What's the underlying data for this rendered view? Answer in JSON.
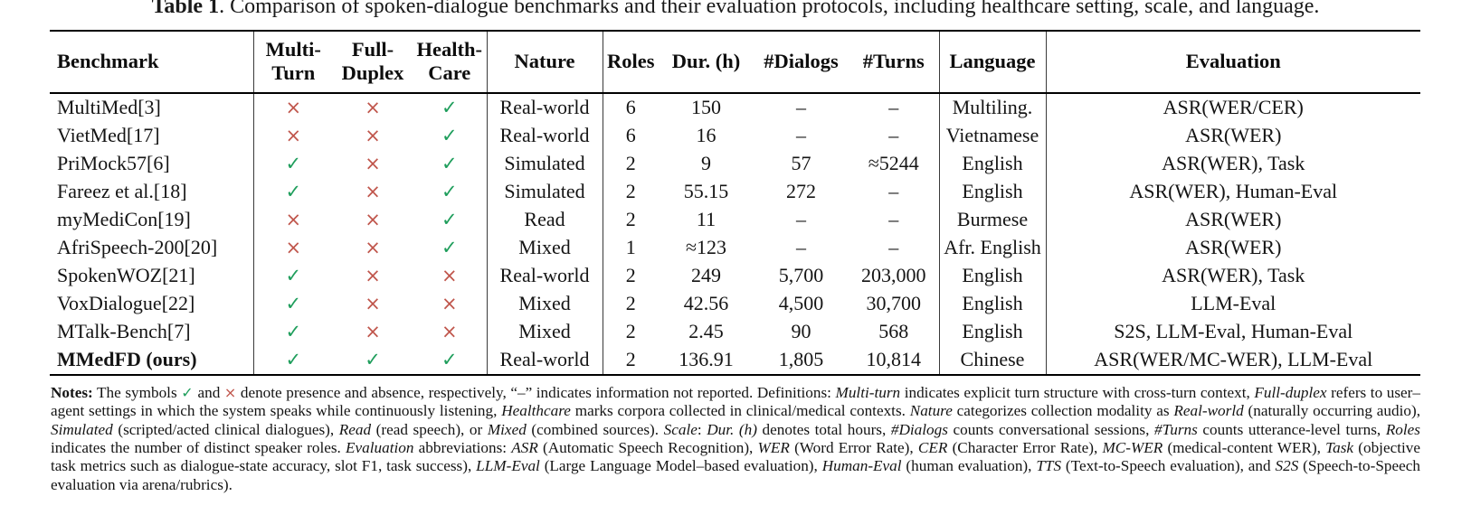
{
  "title": {
    "prefix": "Table 1",
    "rest": ". Comparison of spoken-dialogue benchmarks and their evaluation protocols, including healthcare setting, scale, and language."
  },
  "colors": {
    "check": "#1f9e5c",
    "cross": "#c0564c",
    "rule": "#000000"
  },
  "symbols": {
    "check": "✓",
    "cross": "×",
    "not_reported": "–"
  },
  "table": {
    "headers": [
      {
        "id": "benchmark",
        "lines": [
          "Benchmark"
        ],
        "align": "left"
      },
      {
        "id": "multi-turn",
        "lines": [
          "Multi-",
          "Turn"
        ]
      },
      {
        "id": "full-duplex",
        "lines": [
          "Full-",
          "Duplex"
        ]
      },
      {
        "id": "health-care",
        "lines": [
          "Health-",
          "Care"
        ]
      },
      {
        "id": "nature",
        "lines": [
          "Nature"
        ]
      },
      {
        "id": "roles",
        "lines": [
          "Roles"
        ]
      },
      {
        "id": "dur-h",
        "lines": [
          "Dur. (h)"
        ]
      },
      {
        "id": "dialogs",
        "lines": [
          "#Dialogs"
        ]
      },
      {
        "id": "turns",
        "lines": [
          "#Turns"
        ]
      },
      {
        "id": "language",
        "lines": [
          "Language"
        ]
      },
      {
        "id": "evaluation",
        "lines": [
          "Evaluation"
        ]
      }
    ],
    "rows": [
      {
        "benchmark": "MultiMed[3]",
        "bold": false,
        "multi_turn": false,
        "full_duplex": false,
        "healthcare": true,
        "nature": "Real-world",
        "roles": "6",
        "dur_h": "150",
        "dialogs": "–",
        "turns": "–",
        "language": "Multiling.",
        "evaluation": "ASR(WER/CER)"
      },
      {
        "benchmark": "VietMed[17]",
        "bold": false,
        "multi_turn": false,
        "full_duplex": false,
        "healthcare": true,
        "nature": "Real-world",
        "roles": "6",
        "dur_h": "16",
        "dialogs": "–",
        "turns": "–",
        "language": "Vietnamese",
        "evaluation": "ASR(WER)"
      },
      {
        "benchmark": "PriMock57[6]",
        "bold": false,
        "multi_turn": true,
        "full_duplex": false,
        "healthcare": true,
        "nature": "Simulated",
        "roles": "2",
        "dur_h": "9",
        "dialogs": "57",
        "turns": "≈5244",
        "language": "English",
        "evaluation": "ASR(WER), Task"
      },
      {
        "benchmark": "Fareez et al.[18]",
        "bold": false,
        "multi_turn": true,
        "full_duplex": false,
        "healthcare": true,
        "nature": "Simulated",
        "roles": "2",
        "dur_h": "55.15",
        "dialogs": "272",
        "turns": "–",
        "language": "English",
        "evaluation": "ASR(WER), Human-Eval"
      },
      {
        "benchmark": "myMediCon[19]",
        "bold": false,
        "multi_turn": false,
        "full_duplex": false,
        "healthcare": true,
        "nature": "Read",
        "roles": "2",
        "dur_h": "11",
        "dialogs": "–",
        "turns": "–",
        "language": "Burmese",
        "evaluation": "ASR(WER)"
      },
      {
        "benchmark": "AfriSpeech-200[20]",
        "bold": false,
        "multi_turn": false,
        "full_duplex": false,
        "healthcare": true,
        "nature": "Mixed",
        "roles": "1",
        "dur_h": "≈123",
        "dialogs": "–",
        "turns": "–",
        "language": "Afr. English",
        "evaluation": "ASR(WER)"
      },
      {
        "benchmark": "SpokenWOZ[21]",
        "bold": false,
        "multi_turn": true,
        "full_duplex": false,
        "healthcare": false,
        "nature": "Real-world",
        "roles": "2",
        "dur_h": "249",
        "dialogs": "5,700",
        "turns": "203,000",
        "language": "English",
        "evaluation": "ASR(WER), Task"
      },
      {
        "benchmark": "VoxDialogue[22]",
        "bold": false,
        "multi_turn": true,
        "full_duplex": false,
        "healthcare": false,
        "nature": "Mixed",
        "roles": "2",
        "dur_h": "42.56",
        "dialogs": "4,500",
        "turns": "30,700",
        "language": "English",
        "evaluation": "LLM-Eval"
      },
      {
        "benchmark": "MTalk-Bench[7]",
        "bold": false,
        "multi_turn": true,
        "full_duplex": false,
        "healthcare": false,
        "nature": "Mixed",
        "roles": "2",
        "dur_h": "2.45",
        "dialogs": "90",
        "turns": "568",
        "language": "English",
        "evaluation": "S2S, LLM-Eval, Human-Eval"
      },
      {
        "benchmark": "MMedFD (ours)",
        "bold": true,
        "multi_turn": true,
        "full_duplex": true,
        "healthcare": true,
        "nature": "Real-world",
        "roles": "2",
        "dur_h": "136.91",
        "dialogs": "1,805",
        "turns": "10,814",
        "language": "Chinese",
        "evaluation": "ASR(WER/MC-WER), LLM-Eval"
      }
    ]
  },
  "notes": {
    "segments": [
      {
        "t": "Notes:",
        "s": "b"
      },
      {
        "t": " The symbols ",
        "s": "n"
      },
      {
        "t": "✓",
        "s": "check"
      },
      {
        "t": " and ",
        "s": "n"
      },
      {
        "t": "×",
        "s": "cross"
      },
      {
        "t": " denote presence and absence, respectively, “–” indicates information not reported. Definitions: ",
        "s": "n"
      },
      {
        "t": "Multi-turn",
        "s": "i"
      },
      {
        "t": " indicates explicit turn structure with cross-turn context, ",
        "s": "n"
      },
      {
        "t": "Full-duplex",
        "s": "i"
      },
      {
        "t": " refers to user–agent settings in which the system speaks while continuously listening, ",
        "s": "n"
      },
      {
        "t": "Healthcare",
        "s": "i"
      },
      {
        "t": " marks corpora collected in clinical/medical contexts. ",
        "s": "n"
      },
      {
        "t": "Nature",
        "s": "i"
      },
      {
        "t": " categorizes collection modality as ",
        "s": "n"
      },
      {
        "t": "Real-world",
        "s": "i"
      },
      {
        "t": " (naturally occurring audio), ",
        "s": "n"
      },
      {
        "t": "Simulated",
        "s": "i"
      },
      {
        "t": " (scripted/acted clinical dialogues), ",
        "s": "n"
      },
      {
        "t": "Read",
        "s": "i"
      },
      {
        "t": " (read speech), or ",
        "s": "n"
      },
      {
        "t": "Mixed",
        "s": "i"
      },
      {
        "t": " (combined sources). ",
        "s": "n"
      },
      {
        "t": "Scale",
        "s": "i"
      },
      {
        "t": ": ",
        "s": "n"
      },
      {
        "t": "Dur. (h)",
        "s": "i"
      },
      {
        "t": " denotes total hours, ",
        "s": "n"
      },
      {
        "t": "#Dialogs",
        "s": "i"
      },
      {
        "t": " counts conversational sessions, ",
        "s": "n"
      },
      {
        "t": "#Turns",
        "s": "i"
      },
      {
        "t": " counts utterance-level turns, ",
        "s": "n"
      },
      {
        "t": "Roles",
        "s": "i"
      },
      {
        "t": " indicates the number of distinct speaker roles. ",
        "s": "n"
      },
      {
        "t": "Evaluation",
        "s": "i"
      },
      {
        "t": " abbreviations: ",
        "s": "n"
      },
      {
        "t": "ASR",
        "s": "i"
      },
      {
        "t": " (Automatic Speech Recognition), ",
        "s": "n"
      },
      {
        "t": "WER",
        "s": "i"
      },
      {
        "t": " (Word Error Rate), ",
        "s": "n"
      },
      {
        "t": "CER",
        "s": "i"
      },
      {
        "t": " (Character Error Rate), ",
        "s": "n"
      },
      {
        "t": "MC-WER",
        "s": "i"
      },
      {
        "t": " (medical-content WER), ",
        "s": "n"
      },
      {
        "t": "Task",
        "s": "i"
      },
      {
        "t": " (objective task metrics such as dialogue-state accuracy, slot F1, task success), ",
        "s": "n"
      },
      {
        "t": "LLM-Eval",
        "s": "i"
      },
      {
        "t": " (Large Language Model–based evaluation), ",
        "s": "n"
      },
      {
        "t": "Human-Eval",
        "s": "i"
      },
      {
        "t": " (human evaluation), ",
        "s": "n"
      },
      {
        "t": "TTS",
        "s": "i"
      },
      {
        "t": " (Text-to-Speech evaluation), and ",
        "s": "n"
      },
      {
        "t": "S2S",
        "s": "i"
      },
      {
        "t": " (Speech-to-Speech evaluation via arena/rubrics).",
        "s": "n"
      }
    ]
  }
}
